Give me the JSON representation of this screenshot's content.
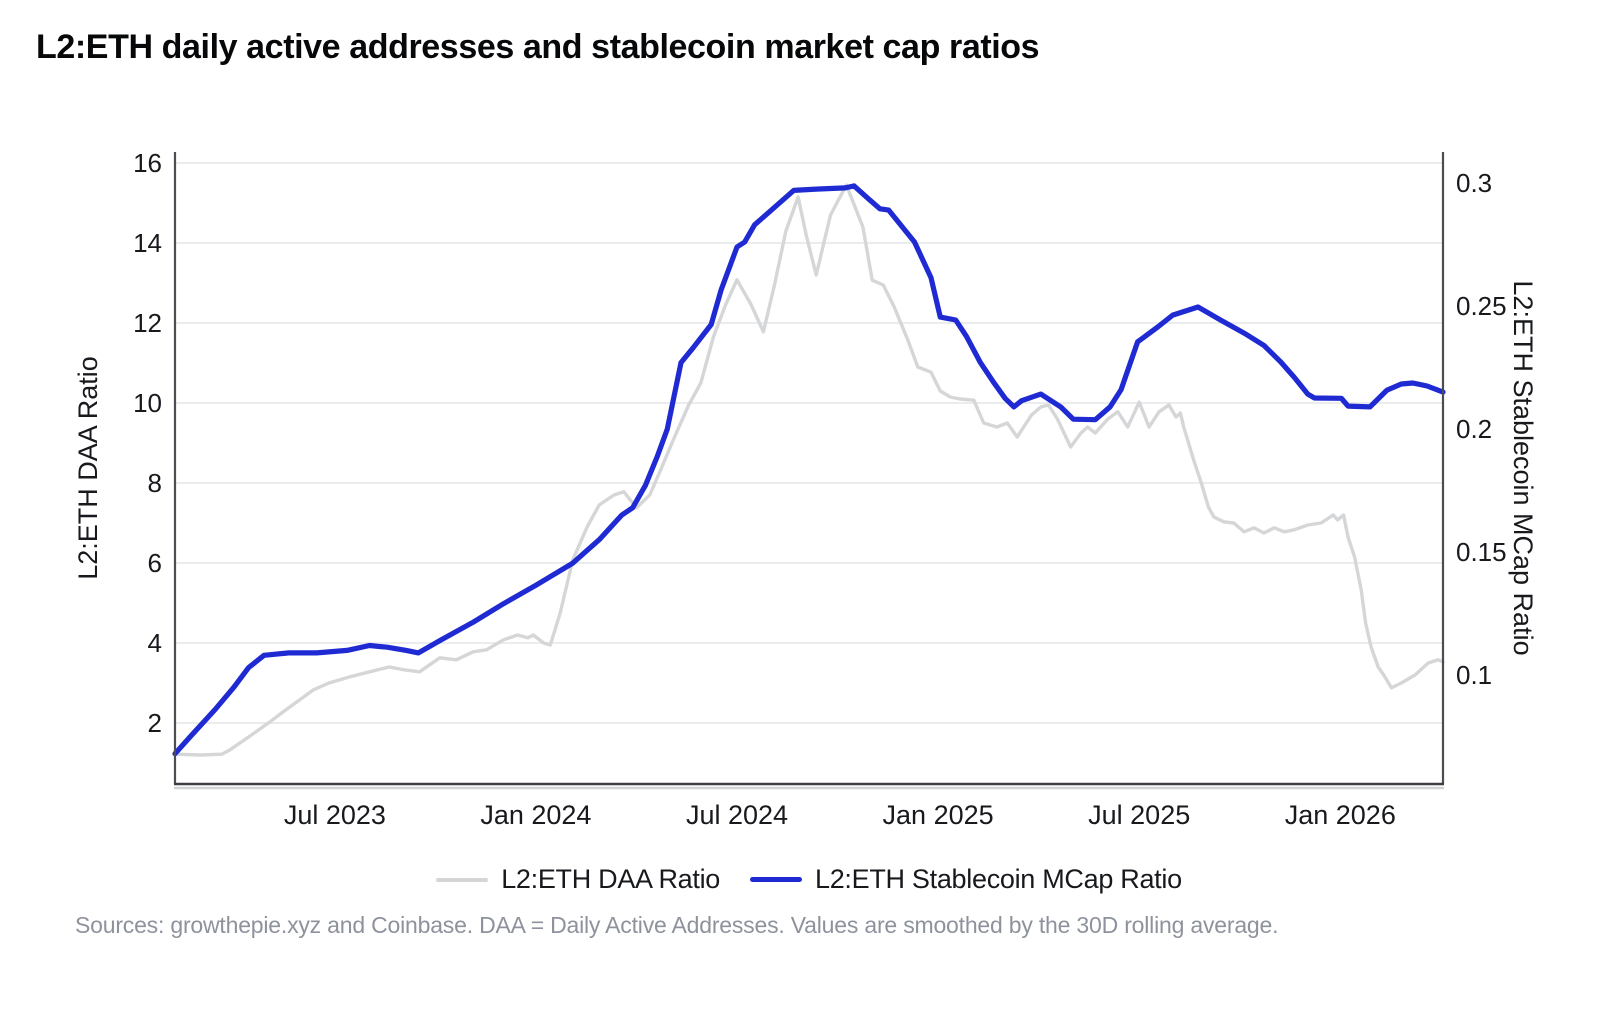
{
  "page": {
    "title": "L2:ETH daily active addresses and stablecoin market cap ratios",
    "source_note": "Sources: growthepie.xyz and Coinbase. DAA = Daily Active Addresses. Values are smoothed by the 30D rolling average."
  },
  "colors": {
    "daa_line": "#d5d6d8",
    "mcap_line": "#1f2ad3",
    "grid": "#e4e5e7",
    "spine": "#4a4d52",
    "bottom_axis": "#3b3e43",
    "bottom_axis_shadow": "#d2d3d5",
    "tick_text": "#17191d",
    "footer_text": "#8d929c"
  },
  "chart_data": {
    "type": "line",
    "title": "L2:ETH daily active addresses and stablecoin market cap ratios",
    "grid": "horizontal lines at left-axis ticks only",
    "legend_position": "bottom-center",
    "x_axis": {
      "tick_labels": [
        "Jul 2023",
        "Jan 2024",
        "Jul 2024",
        "Jan 2025",
        "Jul 2025",
        "Jan 2026"
      ],
      "tick_dates": [
        "2023-07-01",
        "2024-01-01",
        "2024-07-01",
        "2025-01-01",
        "2025-07-01",
        "2026-01-01"
      ],
      "range": [
        "2023-02-08",
        "2026-04-03"
      ]
    },
    "left_axis": {
      "label": "L2:ETH DAA Ratio",
      "ticks": [
        2,
        4,
        6,
        8,
        10,
        12,
        14,
        16
      ],
      "range": [
        0.475,
        16.275
      ]
    },
    "right_axis": {
      "label": "L2:ETH Stablecoin MCap Ratio",
      "ticks": [
        0.1,
        0.15,
        0.2,
        0.25,
        0.3
      ],
      "range": [
        0.0557,
        0.3126
      ]
    },
    "legend": [
      {
        "label": "L2:ETH DAA Ratio",
        "series": "daa"
      },
      {
        "label": "L2:ETH Stablecoin MCap Ratio",
        "series": "mcap"
      }
    ],
    "series": [
      {
        "id": "daa",
        "name": "L2:ETH DAA Ratio",
        "axis": "left",
        "color_key": "daa_line",
        "stroke_width": 3.4,
        "points": [
          [
            "2023-02-08",
            1.22
          ],
          [
            "2023-03-01",
            1.2
          ],
          [
            "2023-03-20",
            1.22
          ],
          [
            "2023-03-27",
            1.32
          ],
          [
            "2023-04-14",
            1.65
          ],
          [
            "2023-05-03",
            2.03
          ],
          [
            "2023-05-16",
            2.3
          ],
          [
            "2023-05-30",
            2.58
          ],
          [
            "2023-06-12",
            2.83
          ],
          [
            "2023-06-26",
            3.0
          ],
          [
            "2023-07-14",
            3.15
          ],
          [
            "2023-08-02",
            3.28
          ],
          [
            "2023-08-20",
            3.4
          ],
          [
            "2023-09-03",
            3.33
          ],
          [
            "2023-09-17",
            3.28
          ],
          [
            "2023-10-05",
            3.63
          ],
          [
            "2023-10-20",
            3.58
          ],
          [
            "2023-11-05",
            3.78
          ],
          [
            "2023-11-17",
            3.83
          ],
          [
            "2023-12-02",
            4.08
          ],
          [
            "2023-12-15",
            4.2
          ],
          [
            "2023-12-24",
            4.13
          ],
          [
            "2023-12-29",
            4.2
          ],
          [
            "2024-01-08",
            4.0
          ],
          [
            "2024-01-14",
            3.95
          ],
          [
            "2024-01-23",
            4.75
          ],
          [
            "2024-02-04",
            6.08
          ],
          [
            "2024-02-17",
            6.9
          ],
          [
            "2024-02-28",
            7.45
          ],
          [
            "2024-03-11",
            7.7
          ],
          [
            "2024-03-20",
            7.78
          ],
          [
            "2024-04-01",
            7.38
          ],
          [
            "2024-04-13",
            7.7
          ],
          [
            "2024-04-23",
            8.33
          ],
          [
            "2024-05-04",
            9.08
          ],
          [
            "2024-05-18",
            9.95
          ],
          [
            "2024-05-29",
            10.5
          ],
          [
            "2024-06-10",
            11.65
          ],
          [
            "2024-06-21",
            12.45
          ],
          [
            "2024-07-01",
            13.08
          ],
          [
            "2024-07-14",
            12.45
          ],
          [
            "2024-07-25",
            11.78
          ],
          [
            "2024-08-05",
            13.0
          ],
          [
            "2024-08-15",
            14.3
          ],
          [
            "2024-08-26",
            15.15
          ],
          [
            "2024-09-03",
            14.2
          ],
          [
            "2024-09-12",
            13.2
          ],
          [
            "2024-09-25",
            14.7
          ],
          [
            "2024-10-09",
            15.45
          ],
          [
            "2024-10-24",
            14.4
          ],
          [
            "2024-11-02",
            13.07
          ],
          [
            "2024-11-12",
            12.95
          ],
          [
            "2024-11-22",
            12.4
          ],
          [
            "2024-12-04",
            11.57
          ],
          [
            "2024-12-13",
            10.9
          ],
          [
            "2024-12-25",
            10.77
          ],
          [
            "2025-01-03",
            10.3
          ],
          [
            "2025-01-12",
            10.15
          ],
          [
            "2025-01-21",
            10.1
          ],
          [
            "2025-02-03",
            10.07
          ],
          [
            "2025-02-12",
            9.5
          ],
          [
            "2025-02-24",
            9.4
          ],
          [
            "2025-03-03",
            9.5
          ],
          [
            "2025-03-12",
            9.15
          ],
          [
            "2025-03-25",
            9.7
          ],
          [
            "2025-04-03",
            9.9
          ],
          [
            "2025-04-10",
            9.95
          ],
          [
            "2025-04-18",
            9.6
          ],
          [
            "2025-04-30",
            8.9
          ],
          [
            "2025-05-09",
            9.25
          ],
          [
            "2025-05-15",
            9.4
          ],
          [
            "2025-05-22",
            9.25
          ],
          [
            "2025-06-03",
            9.6
          ],
          [
            "2025-06-12",
            9.78
          ],
          [
            "2025-06-21",
            9.4
          ],
          [
            "2025-07-01",
            10.02
          ],
          [
            "2025-07-10",
            9.4
          ],
          [
            "2025-07-19",
            9.78
          ],
          [
            "2025-07-28",
            9.95
          ],
          [
            "2025-08-04",
            9.65
          ],
          [
            "2025-08-08",
            9.75
          ],
          [
            "2025-08-11",
            9.4
          ],
          [
            "2025-08-20",
            8.58
          ],
          [
            "2025-08-27",
            8.0
          ],
          [
            "2025-09-03",
            7.4
          ],
          [
            "2025-09-08",
            7.15
          ],
          [
            "2025-09-17",
            7.03
          ],
          [
            "2025-09-26",
            7.0
          ],
          [
            "2025-10-05",
            6.78
          ],
          [
            "2025-10-14",
            6.88
          ],
          [
            "2025-10-23",
            6.75
          ],
          [
            "2025-11-02",
            6.88
          ],
          [
            "2025-11-11",
            6.78
          ],
          [
            "2025-11-20",
            6.83
          ],
          [
            "2025-12-02",
            6.95
          ],
          [
            "2025-12-14",
            7.0
          ],
          [
            "2025-12-25",
            7.2
          ],
          [
            "2025-12-29",
            7.08
          ],
          [
            "2026-01-04",
            7.2
          ],
          [
            "2026-01-08",
            6.65
          ],
          [
            "2026-01-14",
            6.15
          ],
          [
            "2026-01-20",
            5.33
          ],
          [
            "2026-01-24",
            4.5
          ],
          [
            "2026-01-29",
            3.9
          ],
          [
            "2026-02-05",
            3.4
          ],
          [
            "2026-02-10",
            3.2
          ],
          [
            "2026-02-17",
            2.88
          ],
          [
            "2026-02-26",
            3.0
          ],
          [
            "2026-03-08",
            3.2
          ],
          [
            "2026-03-20",
            3.5
          ],
          [
            "2026-03-29",
            3.58
          ],
          [
            "2026-04-03",
            3.53
          ]
        ]
      },
      {
        "id": "mcap",
        "name": "L2:ETH Stablecoin MCap Ratio",
        "axis": "right",
        "color_key": "mcap_line",
        "stroke_width": 5.2,
        "points": [
          [
            "2023-02-08",
            0.068
          ],
          [
            "2023-02-22",
            0.075
          ],
          [
            "2023-03-14",
            0.086
          ],
          [
            "2023-03-31",
            0.095
          ],
          [
            "2023-04-14",
            0.103
          ],
          [
            "2023-04-28",
            0.108
          ],
          [
            "2023-05-20",
            0.109
          ],
          [
            "2023-06-15",
            0.109
          ],
          [
            "2023-07-12",
            0.11
          ],
          [
            "2023-08-02",
            0.112
          ],
          [
            "2023-08-18",
            0.1113
          ],
          [
            "2023-09-05",
            0.11
          ],
          [
            "2023-09-16",
            0.109
          ],
          [
            "2023-10-05",
            0.114
          ],
          [
            "2023-11-05",
            0.1215
          ],
          [
            "2023-12-02",
            0.129
          ],
          [
            "2024-01-01",
            0.1365
          ],
          [
            "2024-02-04",
            0.1455
          ],
          [
            "2024-02-28",
            0.155
          ],
          [
            "2024-03-18",
            0.165
          ],
          [
            "2024-03-28",
            0.168
          ],
          [
            "2024-04-09",
            0.177
          ],
          [
            "2024-04-20",
            0.189
          ],
          [
            "2024-04-29",
            0.2
          ],
          [
            "2024-05-11",
            0.227
          ],
          [
            "2024-05-22",
            0.233
          ],
          [
            "2024-06-08",
            0.2425
          ],
          [
            "2024-06-17",
            0.2565
          ],
          [
            "2024-07-01",
            0.274
          ],
          [
            "2024-07-08",
            0.276
          ],
          [
            "2024-07-17",
            0.283
          ],
          [
            "2024-07-31",
            0.2885
          ],
          [
            "2024-08-22",
            0.297
          ],
          [
            "2024-09-12",
            0.2975
          ],
          [
            "2024-10-08",
            0.298
          ],
          [
            "2024-10-16",
            0.2988
          ],
          [
            "2024-10-28",
            0.294
          ],
          [
            "2024-11-09",
            0.2895
          ],
          [
            "2024-11-17",
            0.289
          ],
          [
            "2024-12-10",
            0.276
          ],
          [
            "2024-12-25",
            0.2615
          ],
          [
            "2025-01-03",
            0.2455
          ],
          [
            "2025-01-17",
            0.2443
          ],
          [
            "2025-01-27",
            0.2375
          ],
          [
            "2025-02-09",
            0.227
          ],
          [
            "2025-02-21",
            0.219
          ],
          [
            "2025-03-01",
            0.2125
          ],
          [
            "2025-03-09",
            0.209
          ],
          [
            "2025-03-16",
            0.2115
          ],
          [
            "2025-04-03",
            0.2142
          ],
          [
            "2025-04-21",
            0.209
          ],
          [
            "2025-05-02",
            0.204
          ],
          [
            "2025-05-22",
            0.2038
          ],
          [
            "2025-06-05",
            0.209
          ],
          [
            "2025-06-15",
            0.216
          ],
          [
            "2025-06-30",
            0.2354
          ],
          [
            "2025-07-18",
            0.2415
          ],
          [
            "2025-08-01",
            0.2463
          ],
          [
            "2025-08-24",
            0.2496
          ],
          [
            "2025-09-14",
            0.2443
          ],
          [
            "2025-10-05",
            0.239
          ],
          [
            "2025-10-23",
            0.234
          ],
          [
            "2025-11-08",
            0.2272
          ],
          [
            "2025-11-20",
            0.2211
          ],
          [
            "2025-12-02",
            0.2142
          ],
          [
            "2025-12-08",
            0.2126
          ],
          [
            "2026-01-02",
            0.2125
          ],
          [
            "2026-01-08",
            0.2093
          ],
          [
            "2026-01-28",
            0.209
          ],
          [
            "2026-02-13",
            0.2158
          ],
          [
            "2026-02-26",
            0.2183
          ],
          [
            "2026-03-06",
            0.2187
          ],
          [
            "2026-03-19",
            0.2175
          ],
          [
            "2026-04-03",
            0.215
          ]
        ]
      }
    ]
  }
}
